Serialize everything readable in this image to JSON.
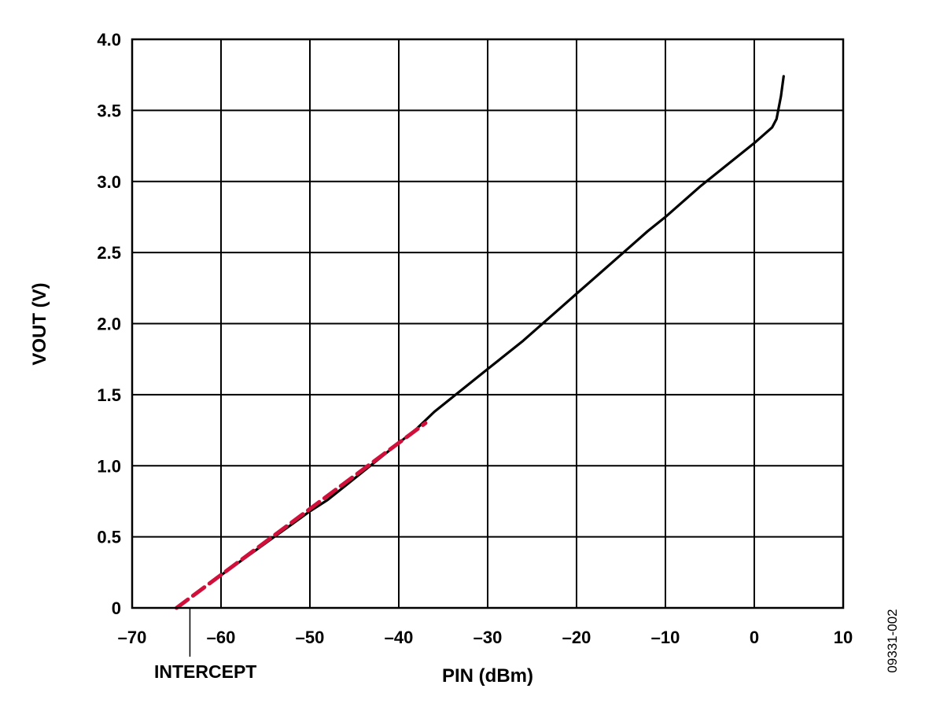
{
  "chart_data": {
    "type": "line",
    "title": "",
    "xlabel": "PIN (dBm)",
    "ylabel": "VOUT (V)",
    "xlim": [
      -70,
      10
    ],
    "ylim": [
      0,
      4.0
    ],
    "grid": true,
    "x_ticks": [
      -70,
      -60,
      -50,
      -40,
      -30,
      -20,
      -10,
      0,
      10
    ],
    "x_tick_labels": [
      "–70",
      "–60",
      "–50",
      "–40",
      "–30",
      "–20",
      "–10",
      "0",
      "10"
    ],
    "y_ticks": [
      0,
      0.5,
      1.0,
      1.5,
      2.0,
      2.5,
      3.0,
      3.5,
      4.0
    ],
    "y_tick_labels": [
      "0",
      "0.5",
      "1.0",
      "1.5",
      "2.0",
      "2.5",
      "3.0",
      "3.5",
      "4.0"
    ],
    "series": [
      {
        "color": "#000000",
        "style": "solid",
        "x": [
          -60,
          -58,
          -56,
          -54,
          -52,
          -50,
          -48,
          -46,
          -44,
          -42,
          -40,
          -38,
          -36,
          -34,
          -32,
          -30,
          -28,
          -26,
          -24,
          -22,
          -20,
          -18,
          -16,
          -14,
          -12,
          -10,
          -8,
          -6,
          -4,
          -2,
          0,
          2,
          2.5,
          3,
          3.3
        ],
        "y": [
          0.23,
          0.32,
          0.41,
          0.5,
          0.59,
          0.68,
          0.76,
          0.86,
          0.96,
          1.06,
          1.16,
          1.26,
          1.38,
          1.48,
          1.58,
          1.68,
          1.78,
          1.88,
          1.99,
          2.1,
          2.21,
          2.32,
          2.43,
          2.54,
          2.65,
          2.75,
          2.86,
          2.97,
          3.07,
          3.17,
          3.27,
          3.38,
          3.44,
          3.6,
          3.74
        ]
      },
      {
        "color": "#d0103a",
        "style": "dashed",
        "x": [
          -65,
          -37
        ],
        "y": [
          0,
          1.3
        ]
      }
    ],
    "annotations": [
      {
        "text": "INTERCEPT",
        "x": -63.5,
        "y": 0
      }
    ]
  },
  "figure_id": "09331-002"
}
